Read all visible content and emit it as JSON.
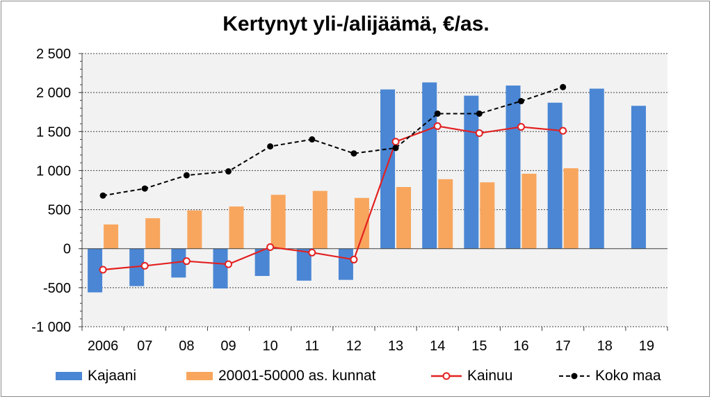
{
  "chart_data": {
    "type": "bar",
    "title": "Kertynyt yli-/alijäämä, €/as.",
    "xlabel": "",
    "ylabel": "",
    "ylim": [
      -1000,
      2500
    ],
    "yticks": [
      -1000,
      -500,
      0,
      500,
      1000,
      1500,
      2000,
      2500
    ],
    "ytick_labels": [
      "-1 000",
      "-500",
      "0",
      "500",
      "1 000",
      "1 500",
      "2 000",
      "2 500"
    ],
    "categories": [
      "2006",
      "07",
      "08",
      "09",
      "10",
      "11",
      "12",
      "13",
      "14",
      "15",
      "16",
      "17",
      "18",
      "19"
    ],
    "grid": true,
    "legend_position": "bottom",
    "series": [
      {
        "name": "Kajaani",
        "type": "bar",
        "color": "#4a86d4",
        "values": [
          -560,
          -480,
          -370,
          -510,
          -350,
          -410,
          -400,
          2040,
          2130,
          1960,
          2090,
          1870,
          2050,
          1830
        ]
      },
      {
        "name": "20001-50000 as. kunnat",
        "type": "bar",
        "color": "#f8a65e",
        "values": [
          310,
          390,
          490,
          540,
          690,
          740,
          650,
          790,
          890,
          850,
          960,
          1030,
          null,
          null
        ]
      },
      {
        "name": "Kainuu",
        "type": "line",
        "color": "#e32020",
        "marker": "open-circle",
        "dash": "solid",
        "values": [
          -270,
          -220,
          -160,
          -200,
          20,
          -50,
          -140,
          1370,
          1570,
          1480,
          1560,
          1510,
          null,
          null
        ]
      },
      {
        "name": "Koko maa",
        "type": "line",
        "color": "#000000",
        "marker": "filled-circle",
        "dash": "dashed",
        "values": [
          680,
          770,
          940,
          990,
          1310,
          1400,
          1220,
          1290,
          1730,
          1730,
          1890,
          2070,
          null,
          null
        ]
      }
    ]
  }
}
